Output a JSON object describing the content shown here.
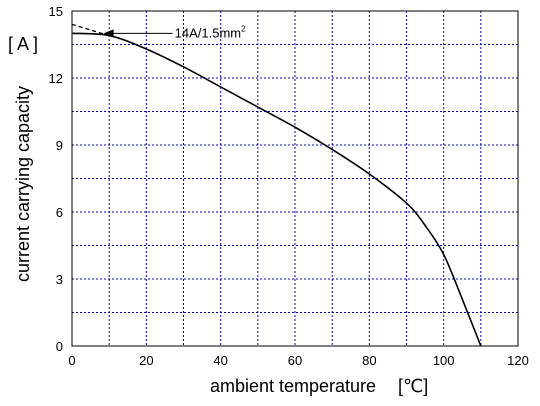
{
  "chart_data": {
    "type": "line",
    "xlabel": "ambient temperature",
    "xunit": "[℃]",
    "ylabel": "current carrying capacity",
    "yunit": "[ A ]",
    "xlim": [
      0,
      120
    ],
    "ylim": [
      0,
      15
    ],
    "xticks": [
      0,
      20,
      40,
      60,
      80,
      100,
      120
    ],
    "yticks": [
      0,
      3,
      6,
      9,
      12,
      15
    ],
    "grid": true,
    "grid_color": "#0000cc",
    "line_color": "#000000",
    "series": [
      {
        "style": "solid",
        "x": [
          0,
          10,
          20,
          30,
          40,
          50,
          60,
          70,
          80,
          90,
          95,
          100,
          105,
          110
        ],
        "y": [
          14.0,
          13.9,
          13.3,
          12.5,
          11.6,
          10.7,
          9.8,
          8.8,
          7.7,
          6.4,
          5.4,
          4.1,
          2.1,
          0
        ]
      },
      {
        "style": "dashed",
        "x": [
          0,
          10
        ],
        "y": [
          14.4,
          13.9
        ]
      }
    ],
    "annotations": [
      {
        "text": "14A/1.5mm",
        "superscript": "2",
        "x": 26,
        "y": 14.0,
        "arrow_to_x": 8.5,
        "arrow_to_y": 14.0
      }
    ]
  }
}
